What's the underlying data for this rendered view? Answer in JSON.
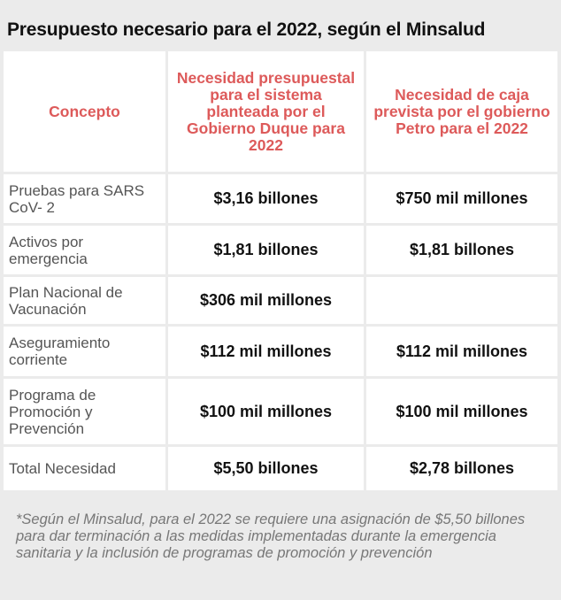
{
  "title": "Presupuesto necesario para el 2022, según el Minsalud",
  "table": {
    "headers": [
      "Concepto",
      "Necesidad presupuestal para el sistema planteada por el Gobierno Duque para 2022",
      "Necesidad de caja prevista por el gobierno Petro para el 2022"
    ],
    "rows": [
      {
        "concept": "Pruebas para SARS CoV- 2",
        "duque": "$3,16 billones",
        "petro": "$750 mil millones"
      },
      {
        "concept": "Activos por emergencia",
        "duque": "$1,81 billones",
        "petro": "$1,81 billones"
      },
      {
        "concept": "Plan Nacional de Vacunación",
        "duque": "$306 mil millones",
        "petro": ""
      },
      {
        "concept": "Aseguramiento corriente",
        "duque": "$112 mil millones",
        "petro": "$112 mil millones"
      },
      {
        "concept": "Programa de Promoción y Prevención",
        "duque": "$100 mil millones",
        "petro": "$100 mil millones"
      },
      {
        "concept": "Total Necesidad",
        "duque": "$5,50 billones",
        "petro": "$2,78 billones"
      }
    ]
  },
  "footnote": "*Según el Minsalud, para el 2022 se requiere una asignación de $5,50 billones para dar terminación a las medidas implementadas durante la emergencia sanitaria y la inclusión de programas de promoción y prevención",
  "colors": {
    "header_text": "#dd5a5a",
    "background": "#ebebeb",
    "cell_background": "#ffffff"
  }
}
